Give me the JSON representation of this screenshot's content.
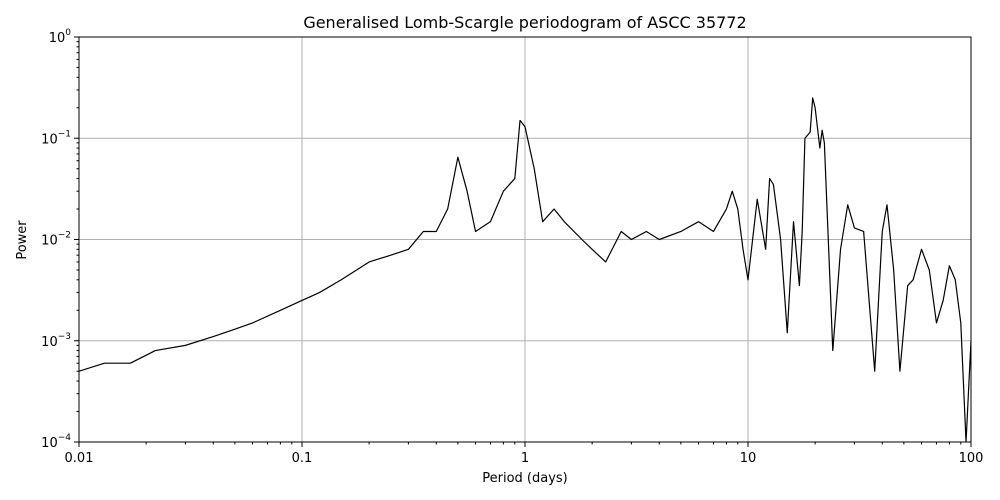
{
  "chart_data": {
    "type": "line",
    "title": "Generalised Lomb-Scargle periodogram of ASCC 35772",
    "xlabel": "Period (days)",
    "ylabel": "Power",
    "xscale": "log",
    "yscale": "log",
    "xlim": [
      0.01,
      100
    ],
    "ylim": [
      0.0001,
      1
    ],
    "grid": true,
    "legend": "none",
    "xticks": [
      {
        "value": 0.01,
        "label": "0.01"
      },
      {
        "value": 0.1,
        "label": "0.1"
      },
      {
        "value": 1,
        "label": "1"
      },
      {
        "value": 10,
        "label": "10"
      },
      {
        "value": 100,
        "label": "100"
      }
    ],
    "yticks": [
      {
        "value": 0.0001,
        "base": "10",
        "exp": "−4"
      },
      {
        "value": 0.001,
        "base": "10",
        "exp": "−3"
      },
      {
        "value": 0.01,
        "base": "10",
        "exp": "−2"
      },
      {
        "value": 0.1,
        "base": "10",
        "exp": "−1"
      },
      {
        "value": 1,
        "base": "10",
        "exp": "0"
      }
    ],
    "series": [
      {
        "color": "#000000",
        "x": [
          0.01,
          0.013,
          0.017,
          0.022,
          0.03,
          0.04,
          0.05,
          0.06,
          0.08,
          0.1,
          0.12,
          0.15,
          0.2,
          0.25,
          0.3,
          0.35,
          0.4,
          0.45,
          0.5,
          0.55,
          0.6,
          0.7,
          0.8,
          0.9,
          0.95,
          1.0,
          1.1,
          1.2,
          1.35,
          1.5,
          1.8,
          2.0,
          2.3,
          2.7,
          3.0,
          3.5,
          4.0,
          5.0,
          6.0,
          7.0,
          8.0,
          8.5,
          9.0,
          9.5,
          10.0,
          11.0,
          12.0,
          12.5,
          13.0,
          14.0,
          15.0,
          16.0,
          17.0,
          17.5,
          18.0,
          19.0,
          19.5,
          20.0,
          21.0,
          21.5,
          22.0,
          24.0,
          26.0,
          28.0,
          30.0,
          33.0,
          37.0,
          40.0,
          42.0,
          45.0,
          48.0,
          52.0,
          55.0,
          60.0,
          65.0,
          70.0,
          75.0,
          80.0,
          85.0,
          90.0,
          95.0,
          100.0
        ],
        "y": [
          0.0005,
          0.0006,
          0.0006,
          0.0008,
          0.0009,
          0.0011,
          0.0013,
          0.0015,
          0.002,
          0.0025,
          0.003,
          0.004,
          0.006,
          0.007,
          0.008,
          0.012,
          0.012,
          0.02,
          0.065,
          0.03,
          0.012,
          0.015,
          0.03,
          0.04,
          0.15,
          0.13,
          0.05,
          0.015,
          0.02,
          0.015,
          0.01,
          0.008,
          0.006,
          0.012,
          0.01,
          0.012,
          0.01,
          0.012,
          0.015,
          0.012,
          0.02,
          0.03,
          0.02,
          0.008,
          0.004,
          0.025,
          0.008,
          0.04,
          0.035,
          0.01,
          0.0012,
          0.015,
          0.0035,
          0.012,
          0.1,
          0.115,
          0.25,
          0.2,
          0.08,
          0.12,
          0.09,
          0.0008,
          0.008,
          0.022,
          0.013,
          0.012,
          0.0005,
          0.012,
          0.022,
          0.005,
          0.0005,
          0.0035,
          0.004,
          0.008,
          0.005,
          0.0015,
          0.0025,
          0.0055,
          0.004,
          0.0015,
          0.0001,
          0.001
        ]
      }
    ]
  }
}
